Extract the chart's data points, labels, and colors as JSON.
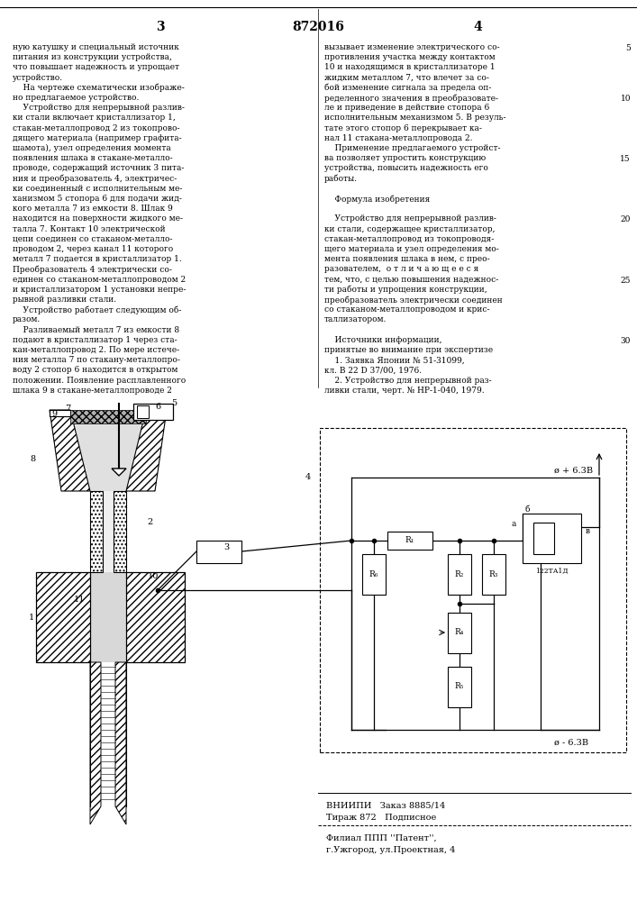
{
  "page_number_left": "3",
  "patent_number": "872016",
  "page_number_right": "4",
  "bg_color": "#ffffff",
  "text_color": "#000000",
  "left_col_text": [
    "ную катушку и специальный источник",
    "питания из конструкции устройства,",
    "что повышает надежность и упрощает",
    "устройство.",
    "    На чертеже схематически изображе-",
    "но предлагаемое устройство.",
    "    Устройство для непрерывной разлив-",
    "ки стали включает кристаллизатор 1,",
    "стакан-металлопровод 2 из токопрово-",
    "дящего материала (например графита-",
    "шамота), узел определения момента",
    "появления шлака в стакане-металло-",
    "проводе, содержащий источник 3 пита-",
    "ния и преобразователь 4, электричес-",
    "ки соединенный с исполнительным ме-",
    "ханизмом 5 стопора 6 для подачи жид-",
    "кого металла 7 из емкости 8. Шлак 9",
    "находится на поверхности жидкого ме-",
    "талла 7. Контакт 10 электрической",
    "цепи соединен со стаканом-металло-",
    "проводом 2, через канал 11 которого",
    "металл 7 подается в кристаллизатор 1.",
    "Преобразователь 4 электрически со-",
    "единен со стаканом-металлопроводом 2",
    "и кристаллизатором 1 установки непре-",
    "рывной разливки стали.",
    "    Устройство работает следующим об-",
    "разом.",
    "    Разливаемый металл 7 из емкости 8",
    "подают в кристаллизатор 1 через ста-",
    "кан-металлопровод 2. По мере истече-",
    "ния металла 7 по стакану-металлопро-",
    "воду 2 стопор 6 находится в открытом",
    "положении. Появление расплавленного",
    "шлака 9 в стакане-металлопроводе 2"
  ],
  "right_col_text": [
    "вызывает изменение электрического со-",
    "противления участка между контактом",
    "10 и находящимся в кристаллизаторе 1",
    "жидким металлом 7, что влечет за со-",
    "бой изменение сигнала за предела оп-",
    "ределенного значения в преобразовате-",
    "ле и приведение в действие стопора 6",
    "исполнительным механизмом 5. В резуль-",
    "тате этого стопор 6 перекрывает ка-",
    "нал 11 стакана-металлопровода 2.",
    "    Применение предлагаемого устройст-",
    "ва позволяет упростить конструкцию",
    "устройства, повысить надежность его",
    "работы.",
    "",
    "    Формула изобретения",
    "",
    "    Устройство для непрерывной разлив-",
    "ки стали, содержащее кристаллизатор,",
    "стакан-металлопровод из токопроводя-",
    "щего материала и узел определения мо-",
    "мента появления шлака в нем, с прео-",
    "разователем,  о т л и ч а ю щ е е с я",
    "тем, что, с целью повышения надежнос-",
    "ти работы и упрощения конструкции,",
    "преобразователь электрически соединен",
    "со стаканом-металлопроводом и крис-",
    "таллизатором.",
    "",
    "    Источники информации,",
    "принятые во внимание при экспертизе",
    "    1. Заявка Японии № 51-31099,",
    "кл. В 22 D 37/00, 1976.",
    "    2. Устройство для непрерывной раз-",
    "ливки стали, черт. № НР-1-040, 1979."
  ],
  "footer_text1": "ВНИИПИ   Заказ 8885/14",
  "footer_text2": "Тираж 872   Подписное",
  "footer_text3": "Филиал ППП ''Патент'',",
  "footer_text4": "г.Ужгород, ул.Проектная, 4"
}
